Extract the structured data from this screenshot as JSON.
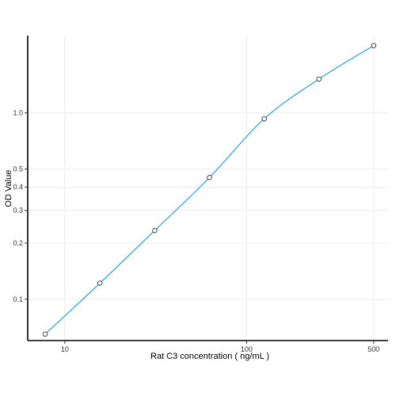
{
  "chart_data": {
    "type": "line",
    "title": "",
    "xlabel": "Rat C3 concentration ( ng/mL )",
    "ylabel": "OD Value",
    "x_scale": "log",
    "y_scale": "log",
    "xlim": [
      6.25,
      600
    ],
    "ylim": [
      0.06,
      2.6
    ],
    "x_ticks": [
      10,
      100,
      500
    ],
    "x_tick_labels": [
      "10",
      "100",
      "500"
    ],
    "y_ticks": [
      0.1,
      0.2,
      0.3,
      0.4,
      0.5,
      1.0
    ],
    "y_tick_labels": [
      "0.1",
      "0.2",
      "0.3",
      "0.4",
      "0.5",
      "1.0"
    ],
    "grid": true,
    "legend": "none",
    "line_color": "#3aa6cc",
    "series": [
      {
        "x": [
          7.8,
          15.6,
          31.25,
          62.5,
          125,
          250,
          500
        ],
        "y": [
          0.065,
          0.122,
          0.234,
          0.45,
          0.93,
          1.52,
          2.3
        ]
      }
    ]
  }
}
